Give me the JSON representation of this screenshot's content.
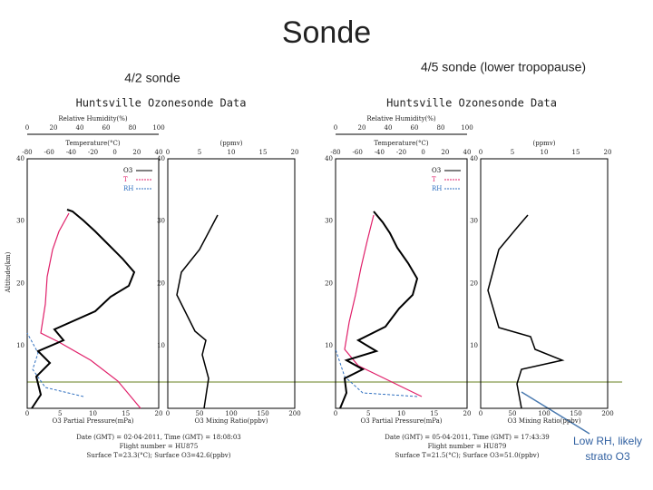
{
  "slide": {
    "title": "Sonde",
    "annotation": "Low RH, likely strato O3"
  },
  "panels": [
    {
      "label": "4/2 sonde",
      "plot_title": "Huntsville Ozonesonde Data",
      "rh_axis_label": "Relative Humidity(%)",
      "rh_ticks": [
        "0",
        "20",
        "40",
        "60",
        "80",
        "100"
      ],
      "temp_axis_label": "Temperature(°C)",
      "temp_ticks": [
        "-80",
        "-60",
        "-40",
        "-20",
        "0",
        "20",
        "40"
      ],
      "ppmv_label": "(ppmv)",
      "ppmv_ticks": [
        "0",
        "5",
        "10",
        "15",
        "20"
      ],
      "altitude_label": "Altitude(km)",
      "alt_ticks": [
        "40",
        "30",
        "20",
        "10"
      ],
      "legend": [
        "O3",
        "T",
        "RH"
      ],
      "x_label": "O3 Partial Pressure(mPa)",
      "x_ticks": [
        "0",
        "5",
        "10",
        "15",
        "20"
      ],
      "mr_label": "O3 Mixing Ratio(ppbv)",
      "mr_ticks": [
        "0",
        "50",
        "100",
        "150",
        "200"
      ],
      "footer": [
        "Date (GMT) = 02-04-2011, Time (GMT) = 18:08:03",
        "Flight number = HU875",
        "Surface T=23.3(°C); Surface O3=42.6(ppbv)"
      ]
    },
    {
      "label": "4/5 sonde (lower tropopause)",
      "plot_title": "Huntsville Ozonesonde Data",
      "rh_axis_label": "Relative Humidity(%)",
      "rh_ticks": [
        "0",
        "20",
        "40",
        "60",
        "80",
        "100"
      ],
      "temp_axis_label": "Temperature(°C)",
      "temp_ticks": [
        "-80",
        "-60",
        "-40",
        "-20",
        "0",
        "20",
        "40"
      ],
      "ppmv_label": "(ppmv)",
      "ppmv_ticks": [
        "0",
        "5",
        "10",
        "15",
        "20"
      ],
      "alt_ticks": [
        "40",
        "30",
        "20",
        "10"
      ],
      "legend": [
        "O3",
        "T",
        "RH"
      ],
      "x_label": "O3 Partial Pressure(mPa)",
      "x_ticks": [
        "0",
        "5",
        "10",
        "15",
        "20"
      ],
      "mr_label": "O3 Mixing Ratio(ppbv)",
      "mr_ticks": [
        "0",
        "50",
        "100",
        "150",
        "200"
      ],
      "footer": [
        "Date (GMT) = 05-04-2011, Time (GMT) = 17:43:39",
        "Flight number = HU879",
        "Surface T=21.5(°C); Surface O3=51.0(ppbv)"
      ]
    }
  ]
}
